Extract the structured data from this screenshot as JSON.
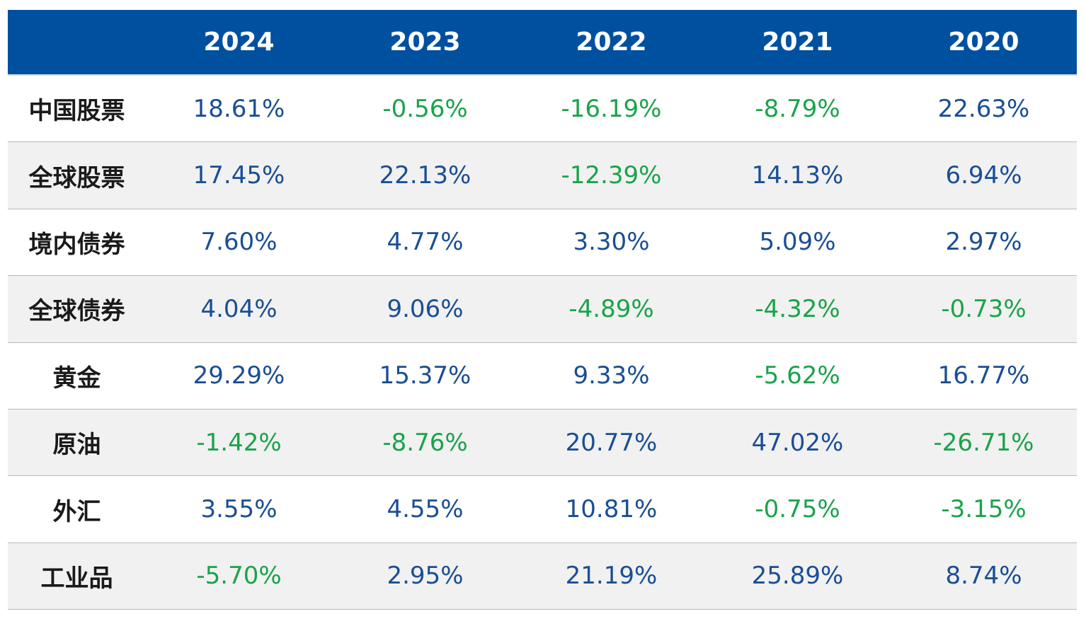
{
  "chart_data": {
    "type": "table",
    "columns": [
      "2024",
      "2023",
      "2022",
      "2021",
      "2020"
    ],
    "rows": [
      {
        "label": "中国股票",
        "values": [
          "18.61%",
          "-0.56%",
          "-16.19%",
          "-8.79%",
          "22.63%"
        ]
      },
      {
        "label": "全球股票",
        "values": [
          "17.45%",
          "22.13%",
          "-12.39%",
          "14.13%",
          "6.94%"
        ]
      },
      {
        "label": "境内债券",
        "values": [
          "7.60%",
          "4.77%",
          "3.30%",
          "5.09%",
          "2.97%"
        ]
      },
      {
        "label": "全球债券",
        "values": [
          "4.04%",
          "9.06%",
          "-4.89%",
          "-4.32%",
          "-0.73%"
        ]
      },
      {
        "label": "黄金",
        "values": [
          "29.29%",
          "15.37%",
          "9.33%",
          "-5.62%",
          "16.77%"
        ]
      },
      {
        "label": "原油",
        "values": [
          "-1.42%",
          "-8.76%",
          "20.77%",
          "47.02%",
          "-26.71%"
        ]
      },
      {
        "label": "外汇",
        "values": [
          "3.55%",
          "4.55%",
          "10.81%",
          "-0.75%",
          "-3.15%"
        ]
      },
      {
        "label": "工业品",
        "values": [
          "-5.70%",
          "2.95%",
          "21.19%",
          "25.89%",
          "8.74%"
        ]
      }
    ]
  },
  "colors": {
    "header_bg": "#0050a0",
    "positive": "#1a4e94",
    "negative": "#1aa34a",
    "alt_row_bg": "#f1f1f1"
  }
}
